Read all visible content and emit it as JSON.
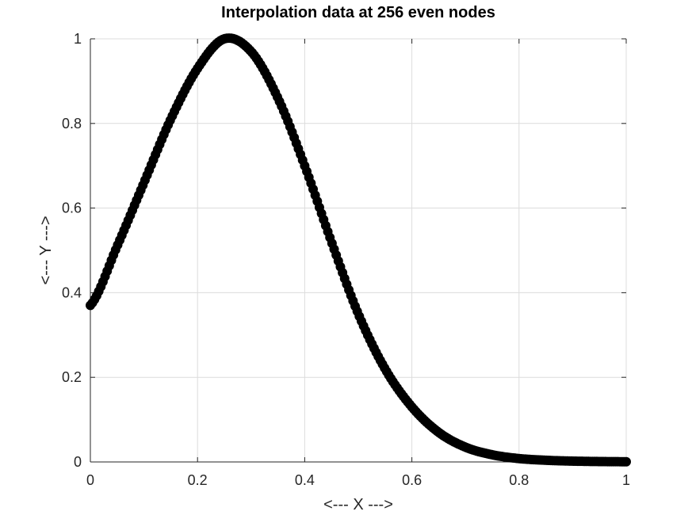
{
  "chart_data": {
    "type": "scatter",
    "title": "Interpolation data at 256 even nodes",
    "xlabel": "<--- X --->",
    "ylabel": "<--- Y --->",
    "xlim": [
      0,
      1
    ],
    "ylim": [
      0,
      1
    ],
    "xticks": [
      0,
      0.2,
      0.4,
      0.6,
      0.8,
      1
    ],
    "yticks": [
      0,
      0.2,
      0.4,
      0.6,
      0.8,
      1
    ],
    "xtick_labels": [
      "0",
      "0.2",
      "0.4",
      "0.6",
      "0.8",
      "1"
    ],
    "ytick_labels": [
      "0",
      "0.2",
      "0.4",
      "0.6",
      "0.8",
      "1"
    ],
    "grid": true,
    "marker": "filled-circle",
    "marker_color": "#000000",
    "n_points": 256,
    "series": [
      {
        "x": [
          0,
          0.05,
          0.1,
          0.15,
          0.2,
          0.25,
          0.3,
          0.35,
          0.4,
          0.45,
          0.5,
          0.55,
          0.6,
          0.65,
          0.7,
          0.75,
          0.8,
          0.85,
          0.9,
          0.95,
          1
        ],
        "y": [
          0.37,
          0.51,
          0.66,
          0.81,
          0.93,
          1.0,
          0.97,
          0.86,
          0.7,
          0.52,
          0.35,
          0.22,
          0.13,
          0.07,
          0.035,
          0.017,
          0.008,
          0.004,
          0.002,
          0.001,
          0.0005
        ]
      }
    ]
  }
}
